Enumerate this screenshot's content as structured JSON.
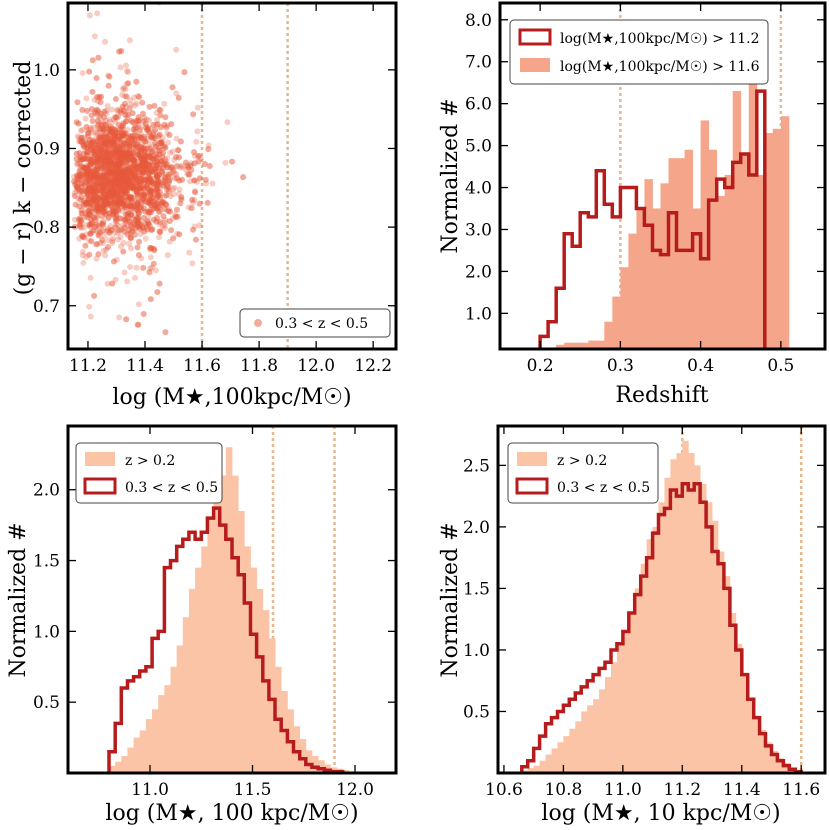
{
  "chart_data": [
    {
      "type": "scatter",
      "xlabel": "log (M★,100kpc/M☉)",
      "ylabel": "(g − r)  k − corrected",
      "xlim": [
        11.13,
        12.28
      ],
      "ylim": [
        0.645,
        1.085
      ],
      "xticks": [
        "11.2",
        "11.4",
        "11.6",
        "11.8",
        "12.0",
        "12.2"
      ],
      "yticks": [
        "0.7",
        "0.8",
        "0.9",
        "1.0"
      ],
      "vlines": [
        11.6,
        11.9
      ],
      "legend": [
        "0.3 < z < 0.5"
      ],
      "legend_loc": "lower-right",
      "point_color": "#e8593a",
      "n_points": 3000,
      "distribution": {
        "x_mode": 11.35,
        "y_center": 0.865,
        "y_scatter": 0.04
      }
    },
    {
      "type": "histogram",
      "xlabel": "Redshift",
      "ylabel": "Normalized #",
      "xlim": [
        0.15,
        0.555
      ],
      "ylim": [
        0.15,
        8.4
      ],
      "xticks": [
        "0.2",
        "0.3",
        "0.4",
        "0.5"
      ],
      "yticks": [
        "1.0",
        "2.0",
        "3.0",
        "4.0",
        "5.0",
        "6.0",
        "7.0",
        "8.0"
      ],
      "vlines": [
        0.3,
        0.5
      ],
      "legend_loc": "upper-left",
      "bin_edges": [
        0.19,
        0.2,
        0.21,
        0.22,
        0.23,
        0.24,
        0.25,
        0.26,
        0.27,
        0.28,
        0.29,
        0.3,
        0.31,
        0.32,
        0.33,
        0.34,
        0.35,
        0.36,
        0.37,
        0.38,
        0.39,
        0.4,
        0.41,
        0.42,
        0.43,
        0.44,
        0.45,
        0.46,
        0.47,
        0.48,
        0.49,
        0.5,
        0.51
      ],
      "series": [
        {
          "name": "log(M★,100kpc/M☉) > 11.6",
          "style": "filled",
          "values": [
            0.05,
            0.1,
            0.18,
            0.25,
            0.3,
            0.3,
            0.3,
            0.35,
            0.35,
            0.8,
            1.4,
            2.1,
            2.9,
            3.5,
            4.2,
            3.5,
            4.1,
            4.7,
            4.7,
            4.9,
            3.5,
            5.6,
            4.9,
            3.8,
            4.3,
            6.3,
            4.8,
            6.5,
            4.3,
            5.3,
            5.4,
            5.7
          ]
        },
        {
          "name": "log(M★,100kpc/M☉) > 11.2",
          "style": "step",
          "values": [
            0.1,
            0.45,
            0.8,
            1.6,
            2.9,
            2.6,
            3.4,
            3.3,
            4.4,
            3.6,
            3.3,
            4.0,
            4.0,
            3.5,
            3.1,
            2.5,
            2.4,
            3.4,
            2.5,
            2.5,
            2.9,
            2.3,
            3.7,
            4.2,
            4.0,
            4.6,
            4.8,
            4.3,
            6.3,
            0,
            0,
            0
          ]
        }
      ]
    },
    {
      "type": "histogram",
      "xlabel": "log (M★, 100 kpc/M☉)",
      "ylabel": "Normalized #",
      "xlim": [
        10.6,
        12.2
      ],
      "ylim": [
        0.0,
        2.45
      ],
      "xticks": [
        "11.0",
        "11.5",
        "12.0"
      ],
      "yticks": [
        "0.5",
        "1.0",
        "1.5",
        "2.0"
      ],
      "vlines": [
        11.6,
        11.9
      ],
      "legend_loc": "upper-left",
      "bin_edges": [
        10.8,
        10.83,
        10.86,
        10.89,
        10.92,
        10.95,
        10.98,
        11.01,
        11.04,
        11.07,
        11.1,
        11.13,
        11.16,
        11.19,
        11.22,
        11.25,
        11.28,
        11.31,
        11.34,
        11.37,
        11.4,
        11.43,
        11.46,
        11.49,
        11.52,
        11.55,
        11.58,
        11.61,
        11.64,
        11.67,
        11.7,
        11.73,
        11.76,
        11.79,
        11.82,
        11.85,
        11.88,
        11.91,
        11.94,
        11.97,
        12.0
      ],
      "series": [
        {
          "name": "z > 0.2",
          "style": "filled",
          "values": [
            0.05,
            0.08,
            0.12,
            0.18,
            0.25,
            0.3,
            0.38,
            0.45,
            0.55,
            0.62,
            0.75,
            0.9,
            1.1,
            1.3,
            1.45,
            1.6,
            1.8,
            1.95,
            2.1,
            2.3,
            2.1,
            1.85,
            1.6,
            1.45,
            1.3,
            1.15,
            0.95,
            0.75,
            0.58,
            0.45,
            0.33,
            0.24,
            0.16,
            0.12,
            0.09,
            0.06,
            0.04,
            0.03,
            0.02,
            0.01
          ]
        },
        {
          "name": "0.3 < z < 0.5",
          "style": "step",
          "values": [
            0.15,
            0.35,
            0.6,
            0.65,
            0.68,
            0.72,
            0.75,
            0.95,
            1.0,
            1.45,
            1.5,
            1.6,
            1.65,
            1.7,
            1.65,
            1.7,
            1.8,
            1.87,
            1.75,
            1.65,
            1.52,
            1.4,
            1.2,
            0.98,
            0.82,
            0.65,
            0.52,
            0.38,
            0.3,
            0.22,
            0.15,
            0.1,
            0.06,
            0.04,
            0.03,
            0.02,
            0.01,
            0.01,
            0,
            0
          ]
        }
      ]
    },
    {
      "type": "histogram",
      "xlabel": "log (M★, 10 kpc/M☉)",
      "ylabel": "Normalized #",
      "xlim": [
        10.58,
        11.68
      ],
      "ylim": [
        0.0,
        2.82
      ],
      "xticks": [
        "10.6",
        "10.8",
        "11.0",
        "11.2",
        "11.4",
        "11.6"
      ],
      "yticks": [
        "0.5",
        "1.0",
        "1.5",
        "2.0",
        "2.5"
      ],
      "vlines": [
        11.2,
        11.6
      ],
      "legend_loc": "upper-left",
      "bin_edges": [
        10.66,
        10.68,
        10.7,
        10.72,
        10.74,
        10.76,
        10.78,
        10.8,
        10.82,
        10.84,
        10.86,
        10.88,
        10.9,
        10.92,
        10.94,
        10.96,
        10.98,
        11.0,
        11.02,
        11.04,
        11.06,
        11.08,
        11.1,
        11.12,
        11.14,
        11.16,
        11.18,
        11.2,
        11.22,
        11.24,
        11.26,
        11.28,
        11.3,
        11.32,
        11.34,
        11.36,
        11.38,
        11.4,
        11.42,
        11.44,
        11.46,
        11.48,
        11.5,
        11.52,
        11.54,
        11.56,
        11.58,
        11.6
      ],
      "series": [
        {
          "name": "z > 0.2",
          "style": "filled",
          "values": [
            0.02,
            0.04,
            0.06,
            0.1,
            0.15,
            0.2,
            0.25,
            0.3,
            0.36,
            0.42,
            0.5,
            0.55,
            0.6,
            0.68,
            0.78,
            0.9,
            1.05,
            1.15,
            1.3,
            1.5,
            1.7,
            1.9,
            2.0,
            2.2,
            2.4,
            2.55,
            2.6,
            2.7,
            2.6,
            2.5,
            2.35,
            2.2,
            2.05,
            1.8,
            1.6,
            1.3,
            1.05,
            0.8,
            0.6,
            0.45,
            0.35,
            0.25,
            0.18,
            0.12,
            0.08,
            0.04,
            0.02
          ]
        },
        {
          "name": "0.3 < z < 0.5",
          "style": "step",
          "values": [
            0.05,
            0.1,
            0.2,
            0.3,
            0.4,
            0.45,
            0.5,
            0.55,
            0.6,
            0.65,
            0.7,
            0.75,
            0.8,
            0.85,
            0.9,
            1.0,
            1.05,
            1.15,
            1.3,
            1.45,
            1.6,
            1.75,
            1.95,
            2.1,
            2.15,
            2.3,
            2.25,
            2.35,
            2.3,
            2.35,
            2.2,
            2.0,
            1.8,
            1.7,
            1.5,
            1.2,
            1.0,
            0.8,
            0.6,
            0.45,
            0.32,
            0.22,
            0.15,
            0.1,
            0.06,
            0.03,
            0.01
          ]
        }
      ]
    }
  ],
  "colors": {
    "scatter": "#e8593a",
    "fill_light": "#fbc4a6",
    "fill_mid": "#f4a58a",
    "step": "#b71c1c",
    "vline": "#e8b78c"
  }
}
